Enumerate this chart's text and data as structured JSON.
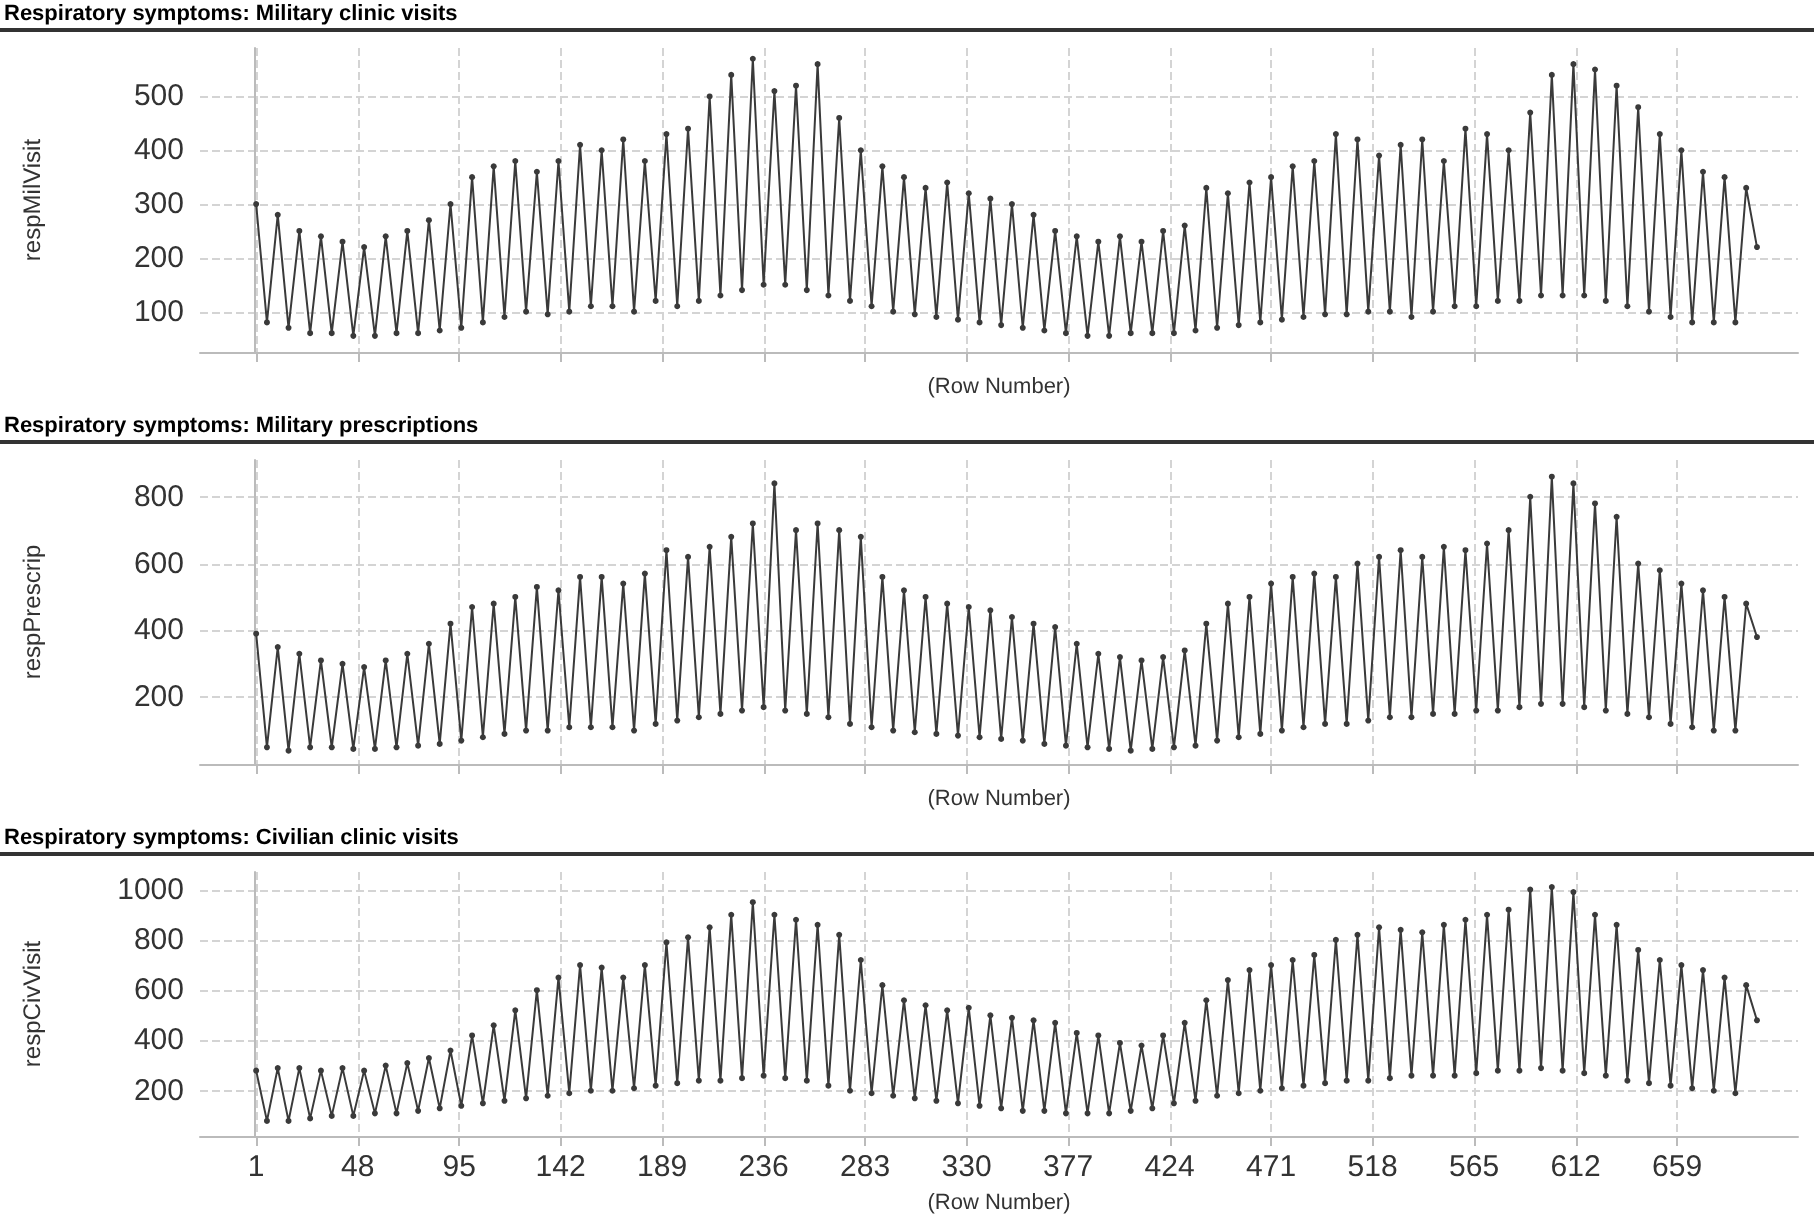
{
  "chart_data": [
    {
      "type": "line",
      "title": "Respiratory symptoms: Military clinic visits",
      "xlabel": "(Row Number)",
      "ylabel": "respMilVisit",
      "xlim": [
        -25,
        715
      ],
      "xticks": [
        1,
        48,
        95,
        142,
        189,
        236,
        283,
        330,
        377,
        424,
        471,
        518,
        565,
        612,
        659
      ],
      "ylim": [
        25,
        590
      ],
      "yticks": [
        100,
        200,
        300,
        400,
        500
      ],
      "grid": true,
      "marker": "circle",
      "tick_labels": "y",
      "x": [
        1,
        6,
        11,
        16,
        21,
        26,
        31,
        36,
        41,
        46,
        51,
        56,
        61,
        66,
        71,
        76,
        81,
        86,
        91,
        96,
        101,
        106,
        111,
        116,
        121,
        126,
        131,
        136,
        141,
        146,
        151,
        156,
        161,
        166,
        171,
        176,
        181,
        186,
        191,
        196,
        201,
        206,
        211,
        216,
        221,
        226,
        231,
        236,
        241,
        246,
        251,
        256,
        261,
        266,
        271,
        276,
        281,
        286,
        291,
        296,
        301,
        306,
        311,
        316,
        321,
        326,
        331,
        336,
        341,
        346,
        351,
        356,
        361,
        366,
        371,
        376,
        381,
        386,
        391,
        396,
        401,
        406,
        411,
        416,
        421,
        426,
        431,
        436,
        441,
        446,
        451,
        456,
        461,
        466,
        471,
        476,
        481,
        486,
        491,
        496,
        501,
        506,
        511,
        516,
        521,
        526,
        531,
        536,
        541,
        546,
        551,
        556,
        561,
        566,
        571,
        576,
        581,
        586,
        591,
        596,
        601,
        606,
        611,
        616,
        621,
        626,
        631,
        636,
        641,
        646,
        651,
        656,
        661,
        666,
        671,
        676,
        681,
        686,
        691,
        696
      ],
      "series": [
        {
          "color": "#3a3a3a",
          "values": [
            300,
            80,
            280,
            70,
            250,
            60,
            240,
            60,
            230,
            55,
            220,
            55,
            240,
            60,
            250,
            60,
            270,
            65,
            300,
            70,
            350,
            80,
            370,
            90,
            380,
            100,
            360,
            95,
            380,
            100,
            410,
            110,
            400,
            110,
            420,
            100,
            380,
            120,
            430,
            110,
            440,
            120,
            500,
            130,
            540,
            140,
            570,
            150,
            510,
            150,
            520,
            140,
            560,
            130,
            460,
            120,
            400,
            110,
            370,
            100,
            350,
            95,
            330,
            90,
            340,
            85,
            320,
            80,
            310,
            75,
            300,
            70,
            280,
            65,
            250,
            60,
            240,
            55,
            230,
            55,
            240,
            60,
            230,
            60,
            250,
            60,
            260,
            65,
            330,
            70,
            320,
            75,
            340,
            80,
            350,
            85,
            370,
            90,
            380,
            95,
            430,
            95,
            420,
            100,
            390,
            100,
            410,
            90,
            420,
            100,
            380,
            110,
            440,
            110,
            430,
            120,
            400,
            120,
            470,
            130,
            540,
            130,
            560,
            130,
            550,
            120,
            520,
            110,
            480,
            100,
            430,
            90,
            400,
            80,
            360,
            80,
            350,
            80,
            330,
            220
          ]
        }
      ]
    },
    {
      "type": "line",
      "title": "Respiratory symptoms: Military prescriptions",
      "xlabel": "(Row Number)",
      "ylabel": "respPrescrip",
      "xlim": [
        -25,
        715
      ],
      "xticks": [
        1,
        48,
        95,
        142,
        189,
        236,
        283,
        330,
        377,
        424,
        471,
        518,
        565,
        612,
        659
      ],
      "ylim": [
        0,
        910
      ],
      "yticks": [
        200,
        400,
        600,
        800
      ],
      "grid": true,
      "marker": "circle",
      "tick_labels": "y",
      "x": [
        1,
        6,
        11,
        16,
        21,
        26,
        31,
        36,
        41,
        46,
        51,
        56,
        61,
        66,
        71,
        76,
        81,
        86,
        91,
        96,
        101,
        106,
        111,
        116,
        121,
        126,
        131,
        136,
        141,
        146,
        151,
        156,
        161,
        166,
        171,
        176,
        181,
        186,
        191,
        196,
        201,
        206,
        211,
        216,
        221,
        226,
        231,
        236,
        241,
        246,
        251,
        256,
        261,
        266,
        271,
        276,
        281,
        286,
        291,
        296,
        301,
        306,
        311,
        316,
        321,
        326,
        331,
        336,
        341,
        346,
        351,
        356,
        361,
        366,
        371,
        376,
        381,
        386,
        391,
        396,
        401,
        406,
        411,
        416,
        421,
        426,
        431,
        436,
        441,
        446,
        451,
        456,
        461,
        466,
        471,
        476,
        481,
        486,
        491,
        496,
        501,
        506,
        511,
        516,
        521,
        526,
        531,
        536,
        541,
        546,
        551,
        556,
        561,
        566,
        571,
        576,
        581,
        586,
        591,
        596,
        601,
        606,
        611,
        616,
        621,
        626,
        631,
        636,
        641,
        646,
        651,
        656,
        661,
        666,
        671,
        676,
        681,
        686,
        691,
        696
      ],
      "series": [
        {
          "color": "#3a3a3a",
          "values": [
            390,
            50,
            350,
            40,
            330,
            50,
            310,
            50,
            300,
            45,
            290,
            45,
            310,
            50,
            330,
            55,
            360,
            60,
            420,
            70,
            470,
            80,
            480,
            90,
            500,
            100,
            530,
            100,
            520,
            110,
            560,
            110,
            560,
            110,
            540,
            100,
            570,
            120,
            640,
            130,
            620,
            140,
            650,
            150,
            680,
            160,
            720,
            170,
            840,
            160,
            700,
            150,
            720,
            140,
            700,
            120,
            680,
            110,
            560,
            100,
            520,
            95,
            500,
            90,
            480,
            85,
            470,
            80,
            460,
            75,
            440,
            70,
            420,
            60,
            410,
            55,
            360,
            50,
            330,
            45,
            320,
            40,
            310,
            45,
            320,
            50,
            340,
            55,
            420,
            70,
            480,
            80,
            500,
            90,
            540,
            100,
            560,
            110,
            570,
            120,
            560,
            120,
            600,
            130,
            620,
            140,
            640,
            140,
            620,
            150,
            650,
            150,
            640,
            160,
            660,
            160,
            700,
            170,
            800,
            180,
            860,
            180,
            840,
            170,
            780,
            160,
            740,
            150,
            600,
            140,
            580,
            120,
            540,
            110,
            520,
            100,
            500,
            100,
            480,
            380
          ]
        }
      ]
    },
    {
      "type": "line",
      "title": "Respiratory symptoms: Civilian clinic visits",
      "xlabel": "(Row Number)",
      "ylabel": "respCivVisit",
      "xlim": [
        -25,
        715
      ],
      "xticks": [
        1,
        48,
        95,
        142,
        189,
        236,
        283,
        330,
        377,
        424,
        471,
        518,
        565,
        612,
        659
      ],
      "ylim": [
        20,
        1070
      ],
      "yticks": [
        200,
        400,
        600,
        800,
        1000
      ],
      "grid": true,
      "marker": "circle",
      "x": [
        1,
        6,
        11,
        16,
        21,
        26,
        31,
        36,
        41,
        46,
        51,
        56,
        61,
        66,
        71,
        76,
        81,
        86,
        91,
        96,
        101,
        106,
        111,
        116,
        121,
        126,
        131,
        136,
        141,
        146,
        151,
        156,
        161,
        166,
        171,
        176,
        181,
        186,
        191,
        196,
        201,
        206,
        211,
        216,
        221,
        226,
        231,
        236,
        241,
        246,
        251,
        256,
        261,
        266,
        271,
        276,
        281,
        286,
        291,
        296,
        301,
        306,
        311,
        316,
        321,
        326,
        331,
        336,
        341,
        346,
        351,
        356,
        361,
        366,
        371,
        376,
        381,
        386,
        391,
        396,
        401,
        406,
        411,
        416,
        421,
        426,
        431,
        436,
        441,
        446,
        451,
        456,
        461,
        466,
        471,
        476,
        481,
        486,
        491,
        496,
        501,
        506,
        511,
        516,
        521,
        526,
        531,
        536,
        541,
        546,
        551,
        556,
        561,
        566,
        571,
        576,
        581,
        586,
        591,
        596,
        601,
        606,
        611,
        616,
        621,
        626,
        631,
        636,
        641,
        646,
        651,
        656,
        661,
        666,
        671,
        676,
        681,
        686,
        691,
        696
      ],
      "series": [
        {
          "color": "#3a3a3a",
          "values": [
            280,
            80,
            290,
            80,
            290,
            90,
            280,
            100,
            290,
            100,
            280,
            110,
            300,
            110,
            310,
            120,
            330,
            130,
            360,
            140,
            420,
            150,
            460,
            160,
            520,
            170,
            600,
            180,
            650,
            190,
            700,
            200,
            690,
            200,
            650,
            210,
            700,
            220,
            790,
            230,
            810,
            240,
            850,
            240,
            900,
            250,
            950,
            260,
            900,
            250,
            880,
            240,
            860,
            220,
            820,
            200,
            720,
            190,
            620,
            180,
            560,
            170,
            540,
            160,
            520,
            150,
            530,
            140,
            500,
            130,
            490,
            120,
            480,
            120,
            470,
            110,
            430,
            110,
            420,
            110,
            390,
            120,
            380,
            130,
            420,
            150,
            470,
            160,
            560,
            180,
            640,
            190,
            680,
            200,
            700,
            210,
            720,
            220,
            740,
            230,
            800,
            240,
            820,
            240,
            850,
            250,
            840,
            260,
            830,
            260,
            860,
            260,
            880,
            270,
            900,
            280,
            920,
            280,
            1000,
            290,
            1010,
            280,
            990,
            270,
            900,
            260,
            860,
            240,
            760,
            230,
            720,
            220,
            700,
            210,
            680,
            200,
            650,
            190,
            620,
            480
          ]
        }
      ]
    }
  ]
}
